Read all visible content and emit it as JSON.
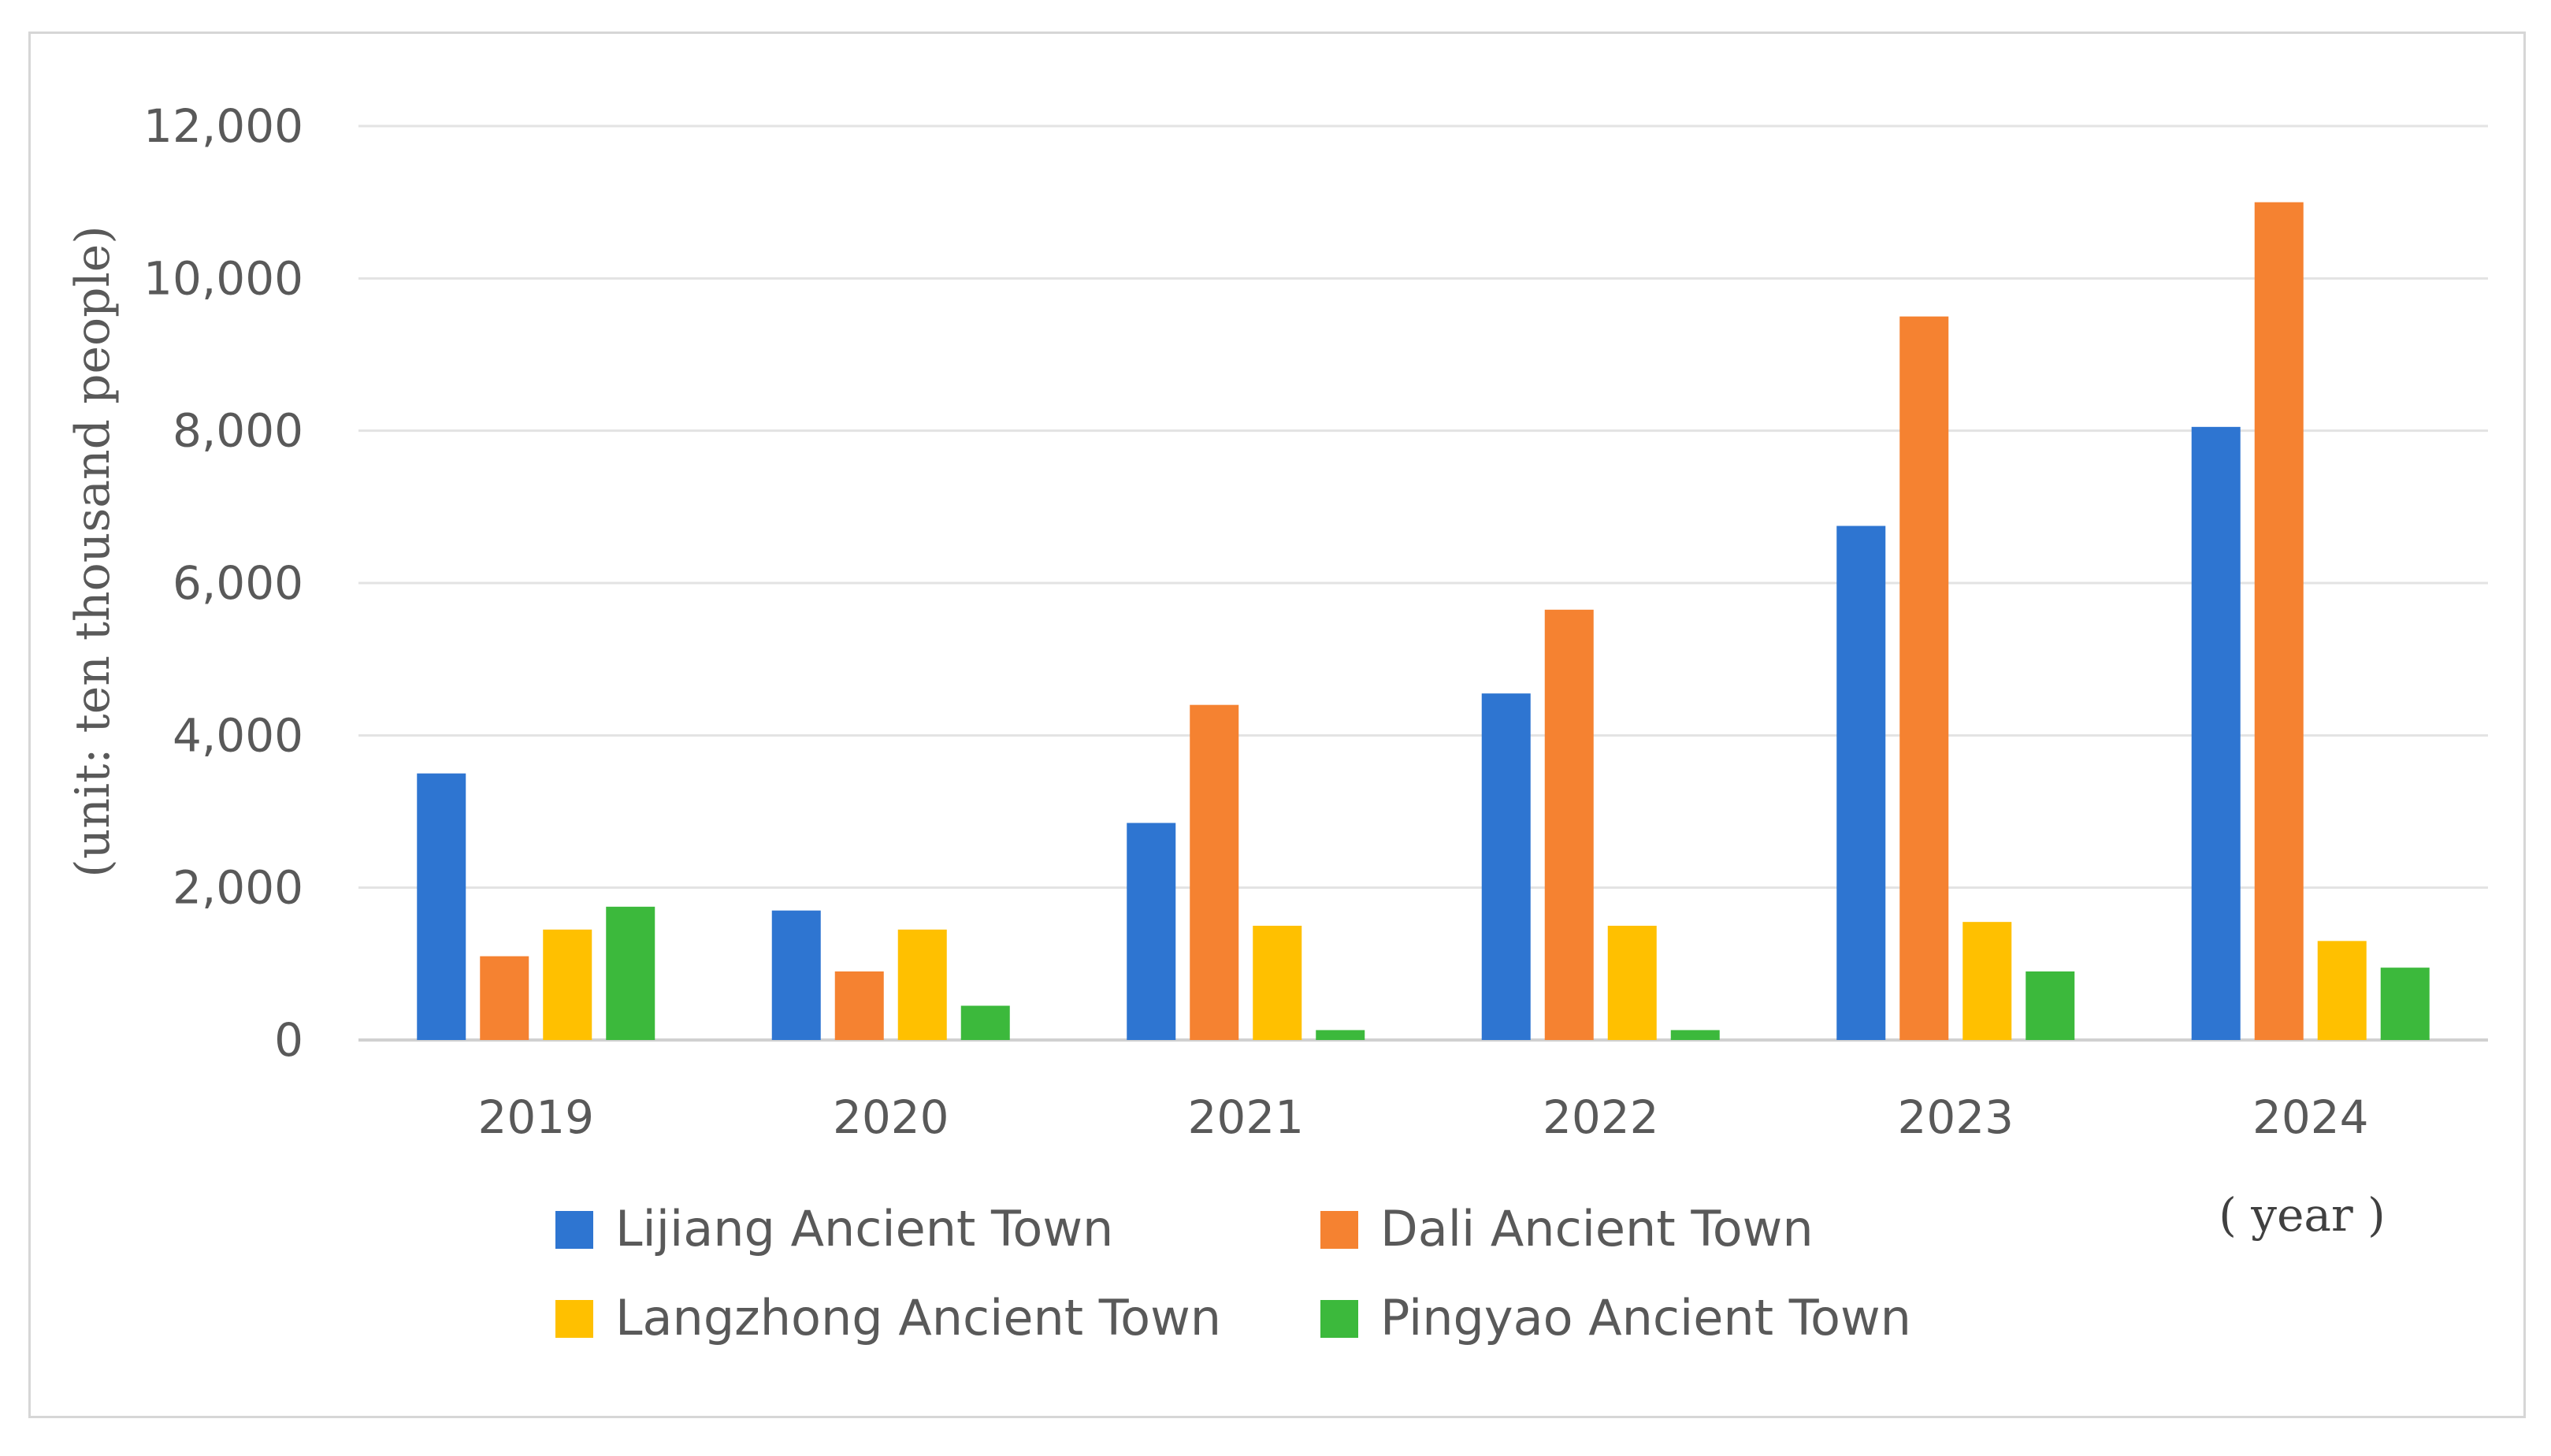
{
  "chart_data": {
    "type": "bar",
    "categories": [
      "2019",
      "2020",
      "2021",
      "2022",
      "2023",
      "2024"
    ],
    "series": [
      {
        "name": "Lijiang Ancient Town",
        "color": "#2E75D1",
        "values": [
          3500,
          1700,
          2850,
          4550,
          6750,
          8050
        ]
      },
      {
        "name": "Dali Ancient Town",
        "color": "#F58231",
        "values": [
          1100,
          900,
          4400,
          5650,
          9500,
          11000
        ]
      },
      {
        "name": "Langzhong Ancient Town",
        "color": "#FFC000",
        "values": [
          1450,
          1450,
          1500,
          1500,
          1550,
          1300
        ]
      },
      {
        "name": "Pingyao Ancient Town",
        "color": "#3CB93C",
        "values": [
          1750,
          450,
          130,
          130,
          900,
          950
        ]
      }
    ],
    "title": "",
    "ylabel": "(unit: ten thousand people)",
    "xlabel": "( year )",
    "ylim": [
      0,
      12000
    ],
    "yticks": [
      0,
      2000,
      4000,
      6000,
      8000,
      10000,
      12000
    ],
    "ytick_labels": [
      "0",
      "2,000",
      "4,000",
      "6,000",
      "8,000",
      "10,000",
      "12,000"
    ],
    "grid": true,
    "legend_position": "bottom"
  }
}
